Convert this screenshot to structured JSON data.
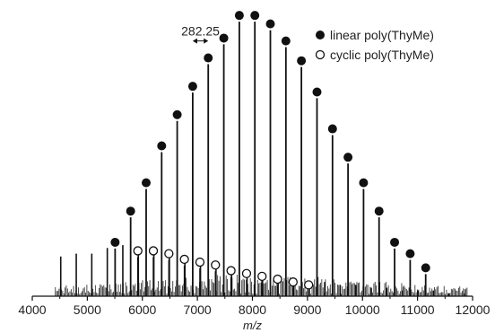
{
  "chart_data": {
    "type": "scatter",
    "title": "",
    "xlabel": "m/z",
    "ylabel": "",
    "xlim": [
      4000,
      12000
    ],
    "ylim": [
      0,
      100
    ],
    "xticks": [
      "4000",
      "5000",
      "6000",
      "7000",
      "8000",
      "9000",
      "10000",
      "11000",
      "12000"
    ],
    "legend_position": "top-right",
    "annotation": {
      "text": "282.25",
      "from_x": 6915,
      "to_x": 7197,
      "y": 90
    },
    "series": [
      {
        "name": "linear poly(ThyMe)",
        "marker": "filled-circle",
        "color": "#111111",
        "x": [
          5505,
          5787,
          6069,
          6351,
          6633,
          6915,
          7197,
          7480,
          7762,
          8044,
          8326,
          8608,
          8890,
          9173,
          9455,
          9737,
          10019,
          10301,
          10583,
          10866,
          11148
        ],
        "y": [
          19,
          30,
          40,
          53,
          64,
          74,
          84,
          91,
          99,
          99,
          96,
          90,
          83,
          72,
          59,
          49,
          40,
          30,
          19,
          15,
          10
        ]
      },
      {
        "name": "cyclic poly(ThyMe)",
        "marker": "open-circle",
        "color": "#111111",
        "x": [
          5918,
          6200,
          6482,
          6764,
          7046,
          7328,
          7611,
          7893,
          8175,
          8457,
          8739,
          9021
        ],
        "y": [
          16,
          16,
          15,
          13,
          12,
          11,
          9,
          8,
          7,
          6,
          5,
          4
        ]
      }
    ],
    "spectrum_peaks": {
      "x": [
        4517,
        4799,
        5081,
        5363,
        5645,
        5927,
        6209,
        6491,
        6773,
        7056,
        7338,
        7620,
        7902,
        8184,
        8466,
        8748,
        9030,
        9313,
        9595,
        9877,
        10159,
        10441,
        10723,
        11005,
        11287,
        11569,
        11851
      ],
      "y": [
        14,
        15,
        15,
        17,
        18,
        17,
        16,
        15,
        14,
        12,
        11,
        10,
        9,
        8,
        7,
        6,
        5,
        5,
        4,
        4,
        3,
        3,
        2,
        2,
        2,
        1,
        1
      ]
    }
  }
}
